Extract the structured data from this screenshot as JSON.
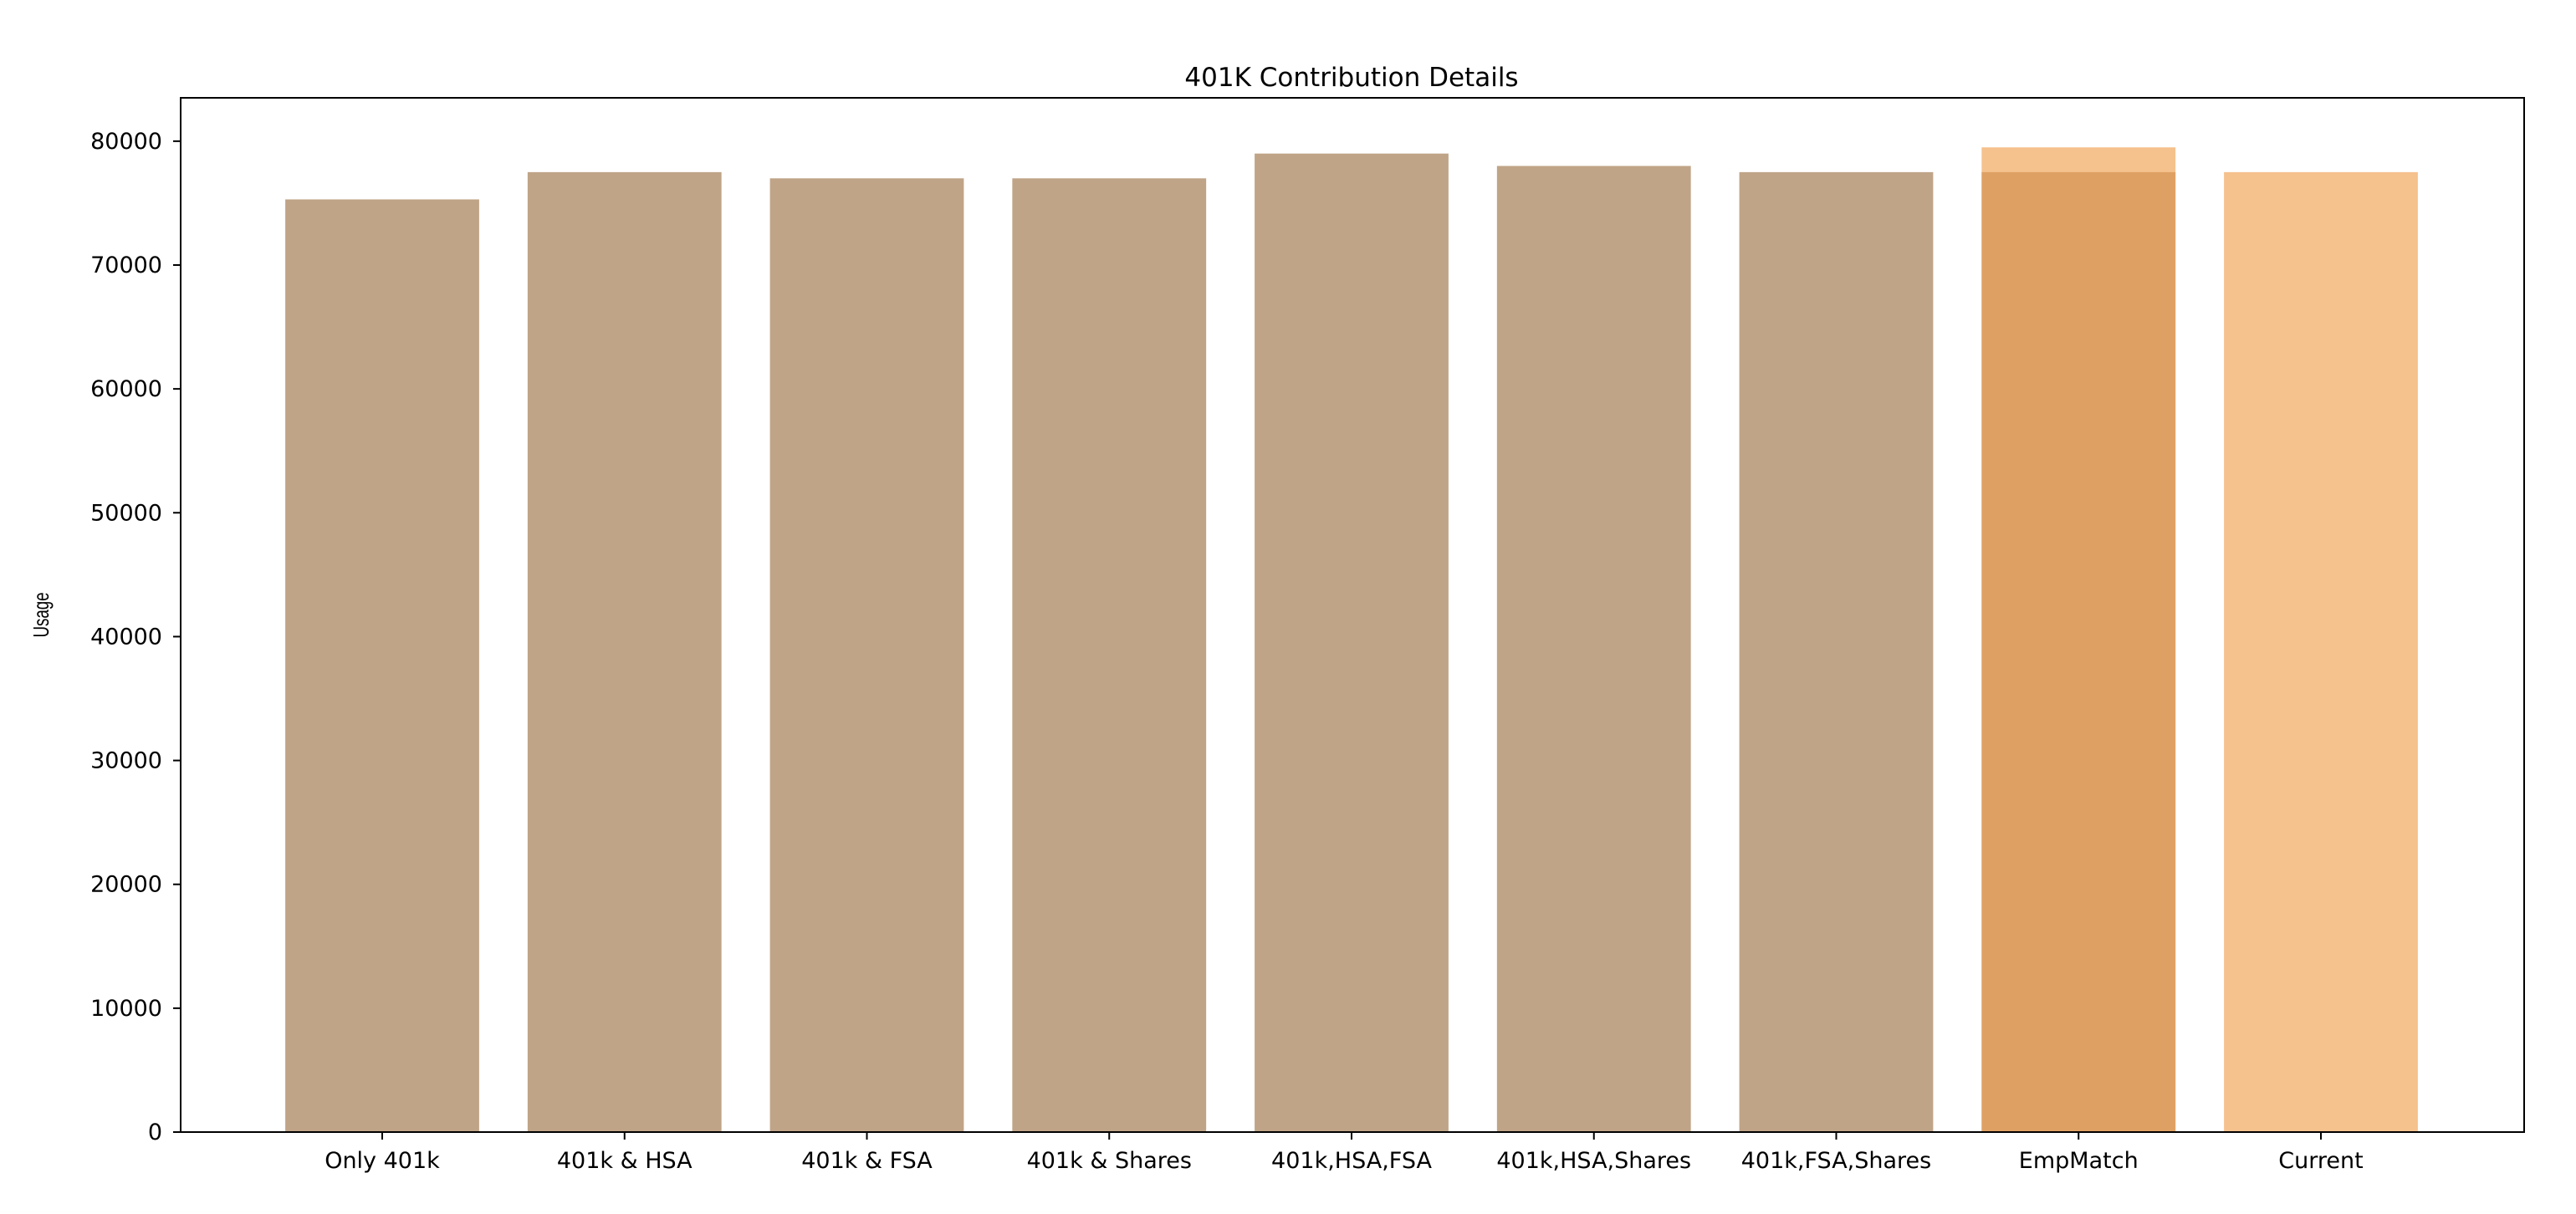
{
  "chart_data": {
    "type": "bar",
    "title": "401K Contribution Details",
    "xlabel": "",
    "ylabel": "Usage",
    "categories": [
      "Only 401k",
      "401k & HSA",
      "401k & FSA",
      "401k & Shares",
      "401k,HSA,FSA",
      "401k,HSA,Shares",
      "401k,FSA,Shares",
      "EmpMatch",
      "Current"
    ],
    "series": [
      {
        "color": "#8c5a25",
        "opacity": 0.55,
        "values": [
          75300,
          77500,
          77000,
          77000,
          79000,
          78000,
          77500,
          77500,
          null
        ]
      },
      {
        "color": "#f0a050",
        "opacity": 0.65,
        "values": [
          null,
          null,
          null,
          null,
          null,
          null,
          null,
          79500,
          77500
        ]
      }
    ],
    "ylim": [
      0,
      83500
    ],
    "yticks": [
      0,
      10000,
      20000,
      30000,
      40000,
      50000,
      60000,
      70000,
      80000
    ],
    "grid": false,
    "legend": "none"
  }
}
